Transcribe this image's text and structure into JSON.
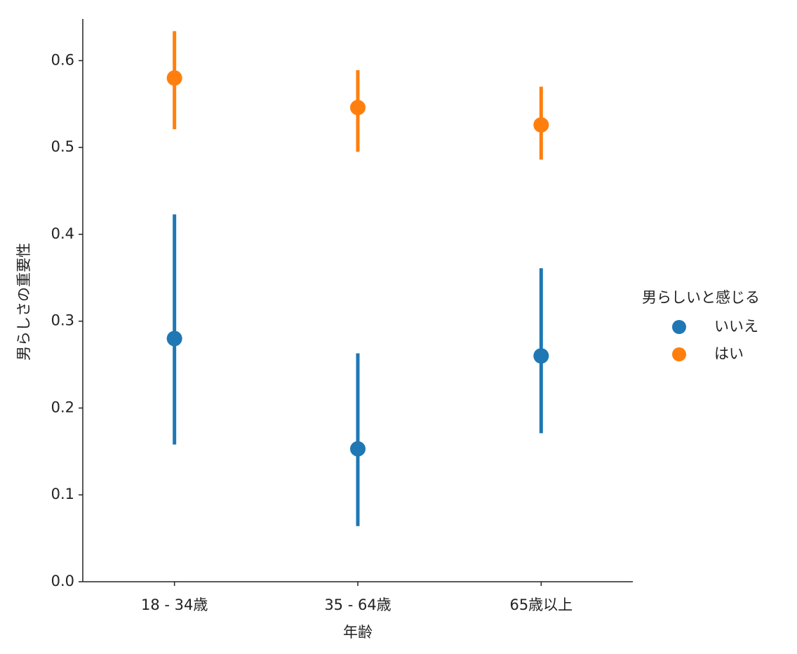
{
  "chart_data": {
    "type": "pointplot",
    "x_label": "年齢",
    "y_label": "男らしさの重要性",
    "categories": [
      "18 - 34歳",
      "35 - 64歳",
      "65歳以上"
    ],
    "legend_title": "男らしいと感じる",
    "series": [
      {
        "name": "いいえ",
        "color": "#1f77b4",
        "values": [
          0.28,
          0.153,
          0.26
        ],
        "ci_low": [
          0.158,
          0.064,
          0.171
        ],
        "ci_high": [
          0.423,
          0.263,
          0.361
        ]
      },
      {
        "name": "はい",
        "color": "#ff7f0e",
        "values": [
          0.58,
          0.546,
          0.526
        ],
        "ci_low": [
          0.521,
          0.495,
          0.486
        ],
        "ci_high": [
          0.634,
          0.589,
          0.57
        ]
      }
    ],
    "ylim": [
      0,
      0.648
    ],
    "yticks": [
      {
        "value": 0,
        "label": "0.0"
      },
      0.1,
      0.2,
      0.3,
      0.4,
      0.5,
      0.6
    ]
  }
}
